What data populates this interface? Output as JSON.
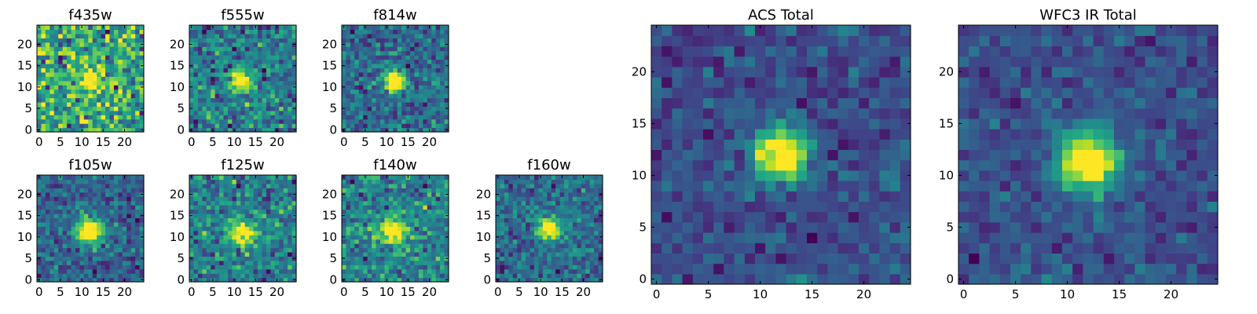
{
  "figure": {
    "description_hidden": false
  },
  "chart_data": [
    {
      "type": "heatmap",
      "title": "f435w",
      "xticks": [
        "0",
        "5",
        "10",
        "15",
        "20"
      ],
      "yticks": [
        "0",
        "5",
        "10",
        "15",
        "20"
      ],
      "xlim": [
        0,
        25
      ],
      "ylim": [
        0,
        25
      ],
      "grid_size": 25,
      "source_center": [
        12.5,
        12.5
      ],
      "source_peak": 0.55,
      "source_sigma": 1.9,
      "noise": 0.55,
      "seed": 11
    },
    {
      "type": "heatmap",
      "title": "f555w",
      "xticks": [
        "0",
        "5",
        "10",
        "15",
        "20"
      ],
      "yticks": [
        "0",
        "5",
        "10",
        "15",
        "20"
      ],
      "xlim": [
        0,
        25
      ],
      "ylim": [
        0,
        25
      ],
      "grid_size": 25,
      "source_center": [
        12.0,
        12.0
      ],
      "source_peak": 0.85,
      "source_sigma": 1.8,
      "noise": 0.5,
      "seed": 23
    },
    {
      "type": "heatmap",
      "title": "f814w",
      "xticks": [
        "0",
        "5",
        "10",
        "15",
        "20"
      ],
      "yticks": [
        "0",
        "5",
        "10",
        "15",
        "20"
      ],
      "xlim": [
        0,
        25
      ],
      "ylim": [
        0,
        25
      ],
      "grid_size": 25,
      "source_center": [
        12.5,
        12.0
      ],
      "source_peak": 1.1,
      "source_sigma": 1.6,
      "noise": 0.42,
      "seed": 37
    },
    {
      "type": "heatmap",
      "title": "f105w",
      "xticks": [
        "0",
        "5",
        "10",
        "15",
        "20"
      ],
      "yticks": [
        "0",
        "5",
        "10",
        "15",
        "20"
      ],
      "xlim": [
        0,
        25
      ],
      "ylim": [
        0,
        25
      ],
      "grid_size": 25,
      "source_center": [
        12.5,
        12.0
      ],
      "source_peak": 1.1,
      "source_sigma": 2.1,
      "noise": 0.38,
      "seed": 41
    },
    {
      "type": "heatmap",
      "title": "f125w",
      "xticks": [
        "0",
        "5",
        "10",
        "15",
        "20"
      ],
      "yticks": [
        "0",
        "5",
        "10",
        "15",
        "20"
      ],
      "xlim": [
        0,
        25
      ],
      "ylim": [
        0,
        25
      ],
      "grid_size": 25,
      "source_center": [
        12.5,
        11.5
      ],
      "source_peak": 0.8,
      "source_sigma": 2.1,
      "noise": 0.5,
      "seed": 53
    },
    {
      "type": "heatmap",
      "title": "f140w",
      "xticks": [
        "0",
        "5",
        "10",
        "15",
        "20"
      ],
      "yticks": [
        "0",
        "5",
        "10",
        "15",
        "20"
      ],
      "xlim": [
        0,
        25
      ],
      "ylim": [
        0,
        25
      ],
      "grid_size": 25,
      "source_center": [
        12.0,
        12.0
      ],
      "source_peak": 0.85,
      "source_sigma": 2.0,
      "noise": 0.45,
      "seed": 67
    },
    {
      "type": "heatmap",
      "title": "f160w",
      "xticks": [
        "0",
        "5",
        "10",
        "15",
        "20"
      ],
      "yticks": [
        "0",
        "5",
        "10",
        "15",
        "20"
      ],
      "xlim": [
        0,
        25
      ],
      "ylim": [
        0,
        25
      ],
      "grid_size": 25,
      "source_center": [
        12.5,
        12.5
      ],
      "source_peak": 1.0,
      "source_sigma": 1.9,
      "noise": 0.4,
      "seed": 79
    },
    {
      "type": "heatmap",
      "title": "ACS Total",
      "xticks": [
        "0",
        "5",
        "10",
        "15",
        "20"
      ],
      "yticks": [
        "0",
        "5",
        "10",
        "15",
        "20"
      ],
      "xlim": [
        0,
        25
      ],
      "ylim": [
        0,
        25
      ],
      "grid_size": 25,
      "source_center": [
        12.5,
        12.5
      ],
      "source_peak": 1.2,
      "source_sigma": 1.8,
      "noise": 0.32,
      "seed": 97
    },
    {
      "type": "heatmap",
      "title": "WFC3 IR Total",
      "xticks": [
        "0",
        "5",
        "10",
        "15",
        "20"
      ],
      "yticks": [
        "0",
        "5",
        "10",
        "15",
        "20"
      ],
      "xlim": [
        0,
        25
      ],
      "ylim": [
        0,
        25
      ],
      "grid_size": 25,
      "source_center": [
        12.5,
        12.0
      ],
      "source_peak": 1.35,
      "source_sigma": 2.0,
      "noise": 0.3,
      "seed": 113
    }
  ],
  "colormap": "viridis"
}
